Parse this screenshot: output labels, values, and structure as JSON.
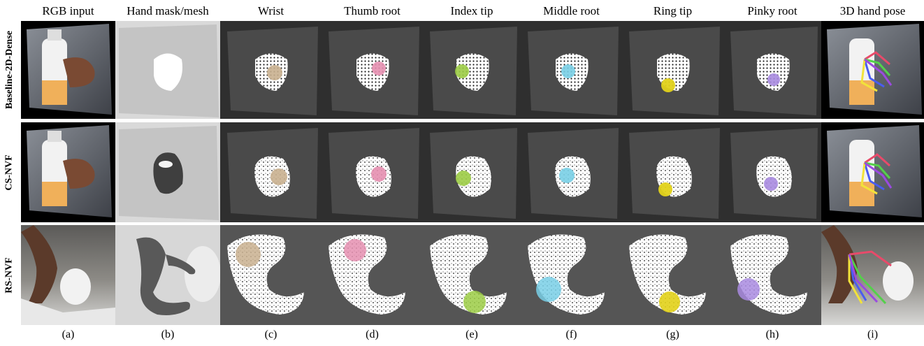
{
  "column_headers": [
    "RGB input",
    "Hand mask/mesh",
    "Wrist",
    "Thumb root",
    "Index tip",
    "Middle root",
    "Ring tip",
    "Pinky root",
    "3D hand pose"
  ],
  "row_labels": [
    "Baseline-2D-Dense",
    "CS-NVF",
    "RS-NVF"
  ],
  "column_labels": [
    "(a)",
    "(b)",
    "(c)",
    "(d)",
    "(e)",
    "(f)",
    "(g)",
    "(h)",
    "(i)"
  ],
  "colors": {
    "wrist": "#c9b08f",
    "thumb_root": "#e58fb0",
    "index_tip": "#9ccc45",
    "middle_root": "#79cfe6",
    "ring_tip": "#e2d21a",
    "pinky_root": "#a98be0",
    "background_dark": "#2f2f2f"
  }
}
